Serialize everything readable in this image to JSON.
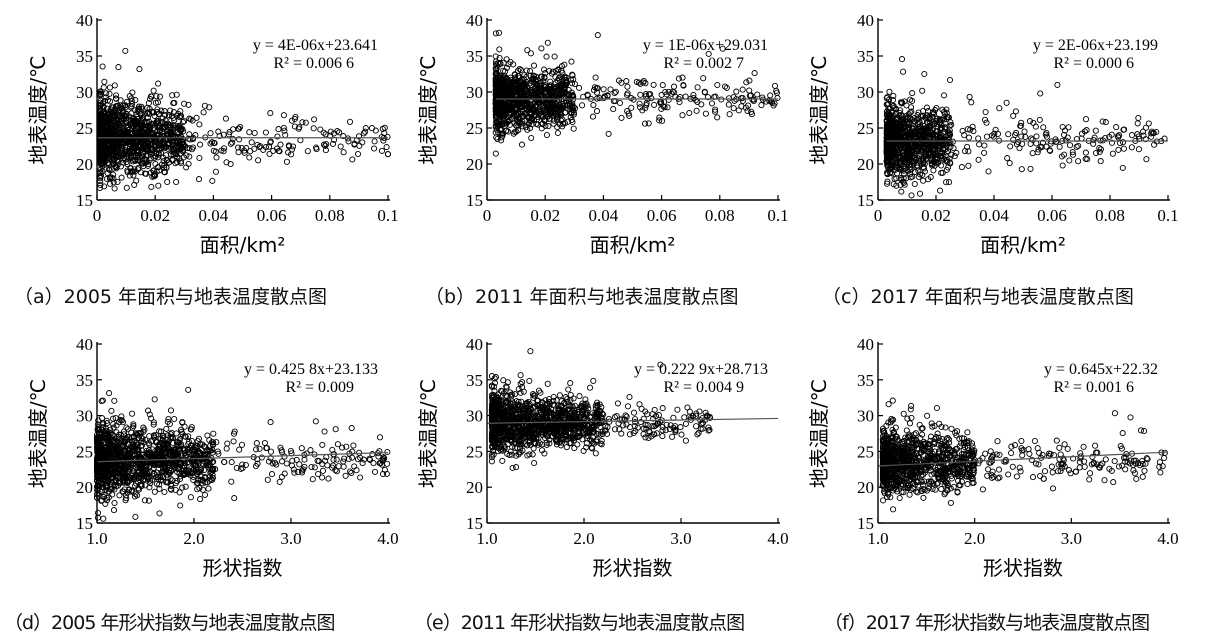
{
  "chart_data": [
    {
      "id": "a",
      "type": "scatter",
      "caption": "（a）2005 年面积与地表温度散点图",
      "xlabel": "面积/km²",
      "ylabel": "地表温度/℃",
      "xlim": [
        0,
        0.1
      ],
      "ylim": [
        15,
        40
      ],
      "xticks": [
        "0",
        "0.02",
        "0.04",
        "0.06",
        "0.08",
        "0.1"
      ],
      "yticks": [
        "15",
        "20",
        "25",
        "30",
        "35",
        "40"
      ],
      "equation": "y = 4E-06x+23.641",
      "r2": "R² = 0.006 6",
      "trend": {
        "slope_per_km2": 4,
        "intercept": 23.641,
        "x": [
          0,
          0.1
        ]
      },
      "point_density": {
        "x_range": [
          0.001,
          0.1
        ],
        "dense_x_max": 0.03,
        "y_center": 23.6,
        "y_spread": 3.2,
        "n": 1300
      }
    },
    {
      "id": "b",
      "type": "scatter",
      "caption": "（b）2011 年面积与地表温度散点图",
      "xlabel": "面积/km²",
      "ylabel": "地表温度/℃",
      "xlim": [
        0,
        0.1
      ],
      "ylim": [
        15,
        40
      ],
      "xticks": [
        "0",
        "0.02",
        "0.04",
        "0.06",
        "0.08",
        "0.1"
      ],
      "yticks": [
        "15",
        "20",
        "25",
        "30",
        "35",
        "40"
      ],
      "equation": "y = 1E-06x+29.031",
      "r2": "R² = 0.002 7",
      "trend": {
        "slope_per_km2": 1,
        "intercept": 29.031,
        "x": [
          0.003,
          0.1
        ]
      },
      "point_density": {
        "x_range": [
          0.003,
          0.1
        ],
        "dense_x_max": 0.03,
        "y_center": 29.0,
        "y_spread": 2.6,
        "n": 1200
      }
    },
    {
      "id": "c",
      "type": "scatter",
      "caption": "（c）2017 年面积与地表温度散点图",
      "xlabel": "面积/km²",
      "ylabel": "地表温度/℃",
      "xlim": [
        0,
        0.1
      ],
      "ylim": [
        15,
        40
      ],
      "xticks": [
        "0",
        "0.02",
        "0.04",
        "0.06",
        "0.08",
        "0.1"
      ],
      "yticks": [
        "15",
        "20",
        "25",
        "30",
        "35",
        "40"
      ],
      "equation": "y = 2E-06x+23.199",
      "r2": "R² = 0.000 6",
      "trend": {
        "slope_per_km2": 2,
        "intercept": 23.199,
        "x": [
          0.003,
          0.1
        ]
      },
      "point_density": {
        "x_range": [
          0.003,
          0.1
        ],
        "dense_x_max": 0.025,
        "y_center": 23.2,
        "y_spread": 2.8,
        "n": 1100
      }
    },
    {
      "id": "d",
      "type": "scatter",
      "caption": "（d）2005 年形状指数与地表温度散点图",
      "xlabel": "形状指数",
      "ylabel": "地表温度/℃",
      "xlim": [
        1.0,
        4.0
      ],
      "ylim": [
        15,
        40
      ],
      "xticks": [
        "1.0",
        "2.0",
        "3.0",
        "4.0"
      ],
      "yticks": [
        "15",
        "20",
        "25",
        "30",
        "35",
        "40"
      ],
      "equation": "y = 0.425 8x+23.133",
      "r2": "R² = 0.009",
      "trend": {
        "slope": 0.4258,
        "intercept": 23.133,
        "x": [
          1.0,
          4.0
        ]
      },
      "point_density": {
        "x_range": [
          1.0,
          4.0
        ],
        "dense_x_max": 2.2,
        "y_center": 23.7,
        "y_spread": 3.0,
        "n": 1400
      }
    },
    {
      "id": "e",
      "type": "scatter",
      "caption": "（e）2011 年形状指数与地表温度散点图",
      "xlabel": "形状指数",
      "ylabel": "地表温度/℃",
      "xlim": [
        1.0,
        4.0
      ],
      "ylim": [
        15,
        40
      ],
      "xticks": [
        "1.0",
        "2.0",
        "3.0",
        "4.0"
      ],
      "yticks": [
        "15",
        "20",
        "25",
        "30",
        "35",
        "40"
      ],
      "equation": "y = 0.222 9x+28.713",
      "r2": "R² = 0.004 9",
      "trend": {
        "slope": 0.2229,
        "intercept": 28.713,
        "x": [
          1.0,
          4.0
        ]
      },
      "point_density": {
        "x_range": [
          1.05,
          3.3
        ],
        "dense_x_max": 2.2,
        "y_center": 29.0,
        "y_spread": 2.4,
        "n": 1300
      }
    },
    {
      "id": "f",
      "type": "scatter",
      "caption": "（f）2017 年形状指数与地表温度散点图",
      "xlabel": "形状指数",
      "ylabel": "地表温度/℃",
      "xlim": [
        1.0,
        4.0
      ],
      "ylim": [
        15,
        40
      ],
      "xticks": [
        "1.0",
        "2.0",
        "3.0",
        "4.0"
      ],
      "yticks": [
        "15",
        "20",
        "25",
        "30",
        "35",
        "40"
      ],
      "equation": "y = 0.645x+22.32",
      "r2": "R² = 0.001 6",
      "trend": {
        "slope": 0.645,
        "intercept": 22.32,
        "x": [
          1.0,
          4.0
        ]
      },
      "point_density": {
        "x_range": [
          1.05,
          4.0
        ],
        "dense_x_max": 2.0,
        "y_center": 23.5,
        "y_spread": 2.6,
        "n": 1100
      }
    }
  ]
}
